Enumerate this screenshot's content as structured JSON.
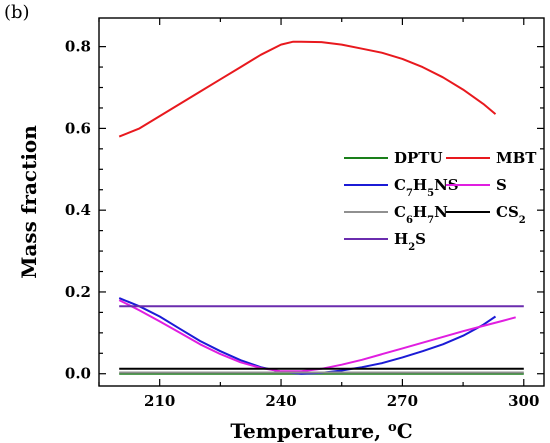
{
  "panel_label": "(b)",
  "chart_data": {
    "type": "line",
    "xlabel": "Temperature, ",
    "xlabel_unit": "oC",
    "ylabel": "Mass fraction",
    "xlim": [
      195,
      305
    ],
    "ylim": [
      -0.03,
      0.87
    ],
    "x_ticks": [
      210,
      240,
      270,
      300
    ],
    "y_ticks": [
      0.0,
      0.2,
      0.4,
      0.6,
      0.8
    ],
    "y_tick_labels": [
      "0.0",
      "0.2",
      "0.4",
      "0.6",
      "0.8"
    ],
    "grid": false,
    "legend_position": "right",
    "series": [
      {
        "name": "DPTU",
        "name_parts": [
          [
            "DPTU",
            ""
          ]
        ],
        "color": "#1a7f1a",
        "x": [
          200,
          300
        ],
        "y": [
          0.0,
          0.0
        ]
      },
      {
        "name": "MBT",
        "name_parts": [
          [
            "MBT",
            ""
          ]
        ],
        "color": "#e8191e",
        "x": [
          200,
          205,
          210,
          215,
          220,
          225,
          230,
          235,
          240,
          243,
          245,
          250,
          255,
          260,
          265,
          270,
          275,
          280,
          285,
          290,
          293
        ],
        "y": [
          0.58,
          0.6,
          0.63,
          0.66,
          0.69,
          0.72,
          0.75,
          0.78,
          0.805,
          0.812,
          0.812,
          0.811,
          0.805,
          0.795,
          0.785,
          0.77,
          0.75,
          0.725,
          0.695,
          0.66,
          0.635
        ]
      },
      {
        "name": "C7H5NS",
        "name_parts": [
          [
            "C",
            ""
          ],
          [
            "7",
            "sub"
          ],
          [
            "H",
            ""
          ],
          [
            "5",
            "sub"
          ],
          [
            "NS",
            ""
          ]
        ],
        "color": "#1b1bd6",
        "x": [
          200,
          205,
          210,
          215,
          220,
          225,
          230,
          235,
          240,
          245,
          250,
          255,
          260,
          265,
          270,
          275,
          280,
          285,
          290,
          293
        ],
        "y": [
          0.185,
          0.165,
          0.14,
          0.11,
          0.08,
          0.055,
          0.033,
          0.016,
          0.005,
          0.0,
          0.002,
          0.008,
          0.016,
          0.026,
          0.04,
          0.055,
          0.072,
          0.093,
          0.12,
          0.14
        ]
      },
      {
        "name": "S",
        "name_parts": [
          [
            "S",
            ""
          ]
        ],
        "color": "#e01ee0",
        "x": [
          200,
          205,
          210,
          215,
          220,
          225,
          230,
          235,
          240,
          245,
          250,
          255,
          260,
          265,
          270,
          275,
          280,
          285,
          290,
          295,
          298
        ],
        "y": [
          0.18,
          0.155,
          0.128,
          0.1,
          0.072,
          0.048,
          0.028,
          0.014,
          0.006,
          0.006,
          0.012,
          0.022,
          0.034,
          0.048,
          0.062,
          0.076,
          0.09,
          0.104,
          0.117,
          0.13,
          0.138
        ]
      },
      {
        "name": "C6H7N",
        "name_parts": [
          [
            "C",
            ""
          ],
          [
            "6",
            "sub"
          ],
          [
            "H",
            ""
          ],
          [
            "7",
            "sub"
          ],
          [
            "N",
            ""
          ]
        ],
        "color": "#909090",
        "x": [
          200,
          300
        ],
        "y": [
          0.003,
          0.003
        ]
      },
      {
        "name": "CS2",
        "name_parts": [
          [
            "CS",
            ""
          ],
          [
            "2",
            "sub"
          ]
        ],
        "color": "#000000",
        "x": [
          200,
          300
        ],
        "y": [
          0.012,
          0.012
        ]
      },
      {
        "name": "H2S",
        "name_parts": [
          [
            "H",
            ""
          ],
          [
            "2",
            "sub"
          ],
          [
            "S",
            ""
          ]
        ],
        "color": "#6a2cae",
        "x": [
          200,
          300
        ],
        "y": [
          0.165,
          0.165
        ]
      }
    ]
  }
}
